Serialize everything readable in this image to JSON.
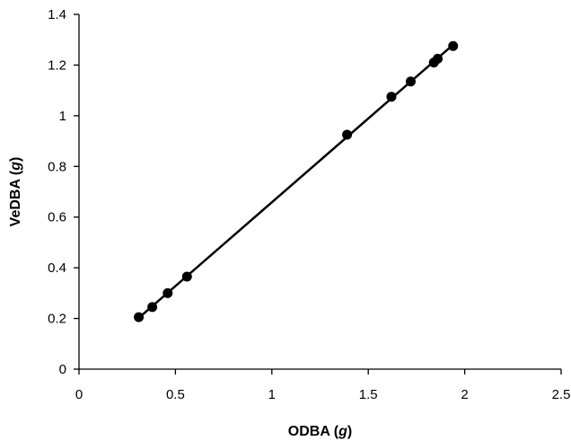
{
  "chart_data": {
    "type": "scatter",
    "title": "",
    "xlabel": "ODBA",
    "xlabel_unit": "g",
    "ylabel": "VeDBA",
    "ylabel_unit": "g",
    "xlim": [
      0,
      2.5
    ],
    "ylim": [
      0,
      1.4
    ],
    "xticks": [
      "0",
      "0.5",
      "1",
      "1.5",
      "2",
      "2.5"
    ],
    "yticks": [
      "0",
      "0.2",
      "0.4",
      "0.6",
      "0.8",
      "1",
      "1.2",
      "1.4"
    ],
    "grid": false,
    "legend": "none",
    "trendline": true,
    "series": [
      {
        "points": [
          {
            "x": 0.31,
            "y": 0.205
          },
          {
            "x": 0.38,
            "y": 0.245
          },
          {
            "x": 0.46,
            "y": 0.3
          },
          {
            "x": 0.56,
            "y": 0.365
          },
          {
            "x": 1.39,
            "y": 0.925
          },
          {
            "x": 1.62,
            "y": 1.075
          },
          {
            "x": 1.72,
            "y": 1.135
          },
          {
            "x": 1.84,
            "y": 1.21
          },
          {
            "x": 1.86,
            "y": 1.225
          },
          {
            "x": 1.94,
            "y": 1.275
          }
        ]
      }
    ],
    "colors": {
      "marker": "#000000",
      "line": "#000000",
      "axis": "#000000"
    }
  }
}
